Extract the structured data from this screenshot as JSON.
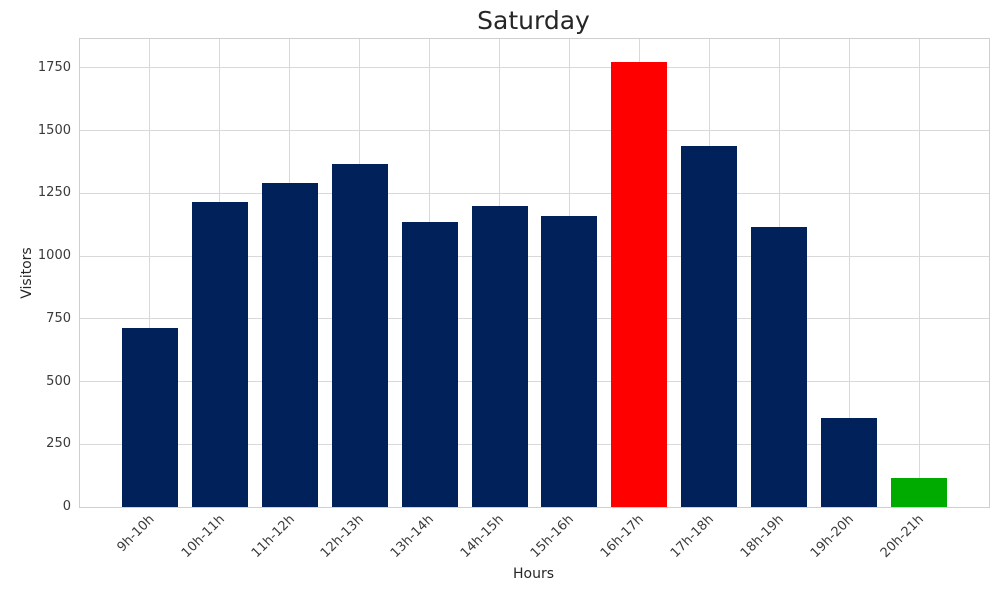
{
  "chart_data": {
    "type": "bar",
    "title": "Saturday",
    "xlabel": "Hours",
    "ylabel": "Visitors",
    "categories": [
      "9h-10h",
      "10h-11h",
      "11h-12h",
      "12h-13h",
      "13h-14h",
      "14h-15h",
      "15h-16h",
      "16h-17h",
      "17h-18h",
      "18h-19h",
      "19h-20h",
      "20h-21h"
    ],
    "values": [
      715,
      1215,
      1290,
      1365,
      1135,
      1200,
      1160,
      1775,
      1440,
      1115,
      355,
      115
    ],
    "bar_colors": [
      "#002159",
      "#002159",
      "#002159",
      "#002159",
      "#002159",
      "#002159",
      "#002159",
      "#ff0000",
      "#002159",
      "#002159",
      "#002159",
      "#00ab00"
    ],
    "yticks": [
      0,
      250,
      500,
      750,
      1000,
      1250,
      1500,
      1750
    ],
    "ylim": [
      0,
      1865
    ],
    "grid": true,
    "legend_position": "none",
    "colors": {
      "default_bar": "#002159",
      "max_highlight": "#ff0000",
      "min_highlight": "#00ab00",
      "gridline": "#d9d9d9",
      "frame": "#cfcfcf",
      "text": "#262626",
      "tick_text": "#3a3a3a"
    }
  }
}
